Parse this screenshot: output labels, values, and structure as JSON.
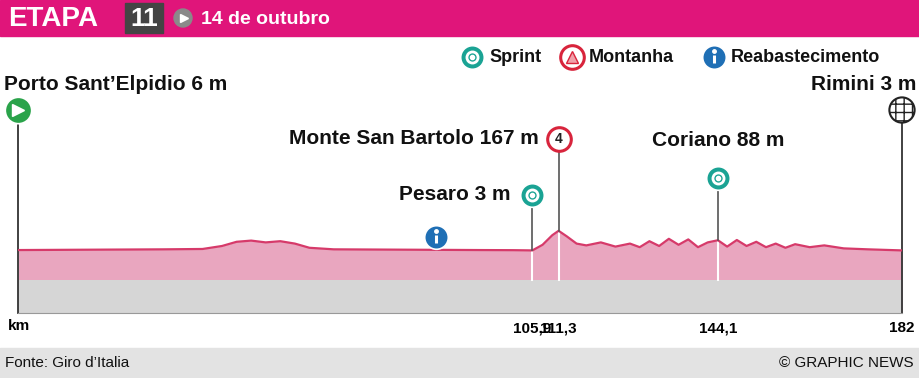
{
  "chart_data": {
    "type": "area",
    "title": "ETAPA",
    "stage": 11,
    "subtitle": "14 de outubro",
    "symbols": {
      "sprint": "Sprint",
      "mountain": "Montanha",
      "feed": "Reabastecimento"
    },
    "start": {
      "label": "Porto Sant’Elpidio 6 m",
      "km": 0,
      "elevation": 6
    },
    "finish": {
      "label": "Rimini 3 m",
      "km": 182,
      "elevation": 3
    },
    "points": [
      {
        "label": "Pesaro 3 m",
        "km": 105.9,
        "elevation": 3,
        "type": "sprint"
      },
      {
        "label": "Monte San Bartolo 167 m",
        "km": 111.3,
        "elevation": 167,
        "type": "mountain",
        "category": 4
      },
      {
        "label": "Coriano 88 m",
        "km": 144.1,
        "elevation": 88,
        "type": "sprint"
      },
      {
        "km": 86,
        "type": "feed"
      }
    ],
    "x": [
      0,
      10,
      20,
      30,
      38,
      42,
      45,
      48,
      51,
      54,
      57,
      60,
      65,
      75,
      85,
      95,
      102,
      105.9,
      108,
      110,
      111.3,
      113,
      115,
      117,
      120,
      123,
      126,
      128,
      130,
      132,
      134,
      136,
      138,
      140,
      142,
      144.1,
      146,
      148,
      150,
      152,
      154,
      156,
      158,
      160,
      163,
      166,
      170,
      175,
      182
    ],
    "values": [
      6,
      8,
      10,
      12,
      15,
      40,
      75,
      85,
      70,
      80,
      60,
      25,
      12,
      10,
      8,
      6,
      5,
      3,
      50,
      130,
      167,
      120,
      60,
      45,
      70,
      35,
      60,
      30,
      80,
      40,
      100,
      50,
      95,
      30,
      70,
      88,
      35,
      90,
      40,
      75,
      30,
      60,
      25,
      55,
      30,
      45,
      20,
      12,
      3
    ],
    "color": "#e9a6bf",
    "xlim": [
      0,
      182
    ],
    "ylim": [
      -520,
      1260
    ],
    "xticks": [
      {
        "value": 105.9,
        "label": "105,9"
      },
      {
        "value": 111.3,
        "label": "111,3"
      },
      {
        "value": 144.1,
        "label": "144,1"
      },
      182
    ],
    "xlabel": "km",
    "tick_labels": "x",
    "grid": false,
    "source": "Fonte: Giro d’Italia",
    "credit": "© GRAPHIC NEWS"
  }
}
